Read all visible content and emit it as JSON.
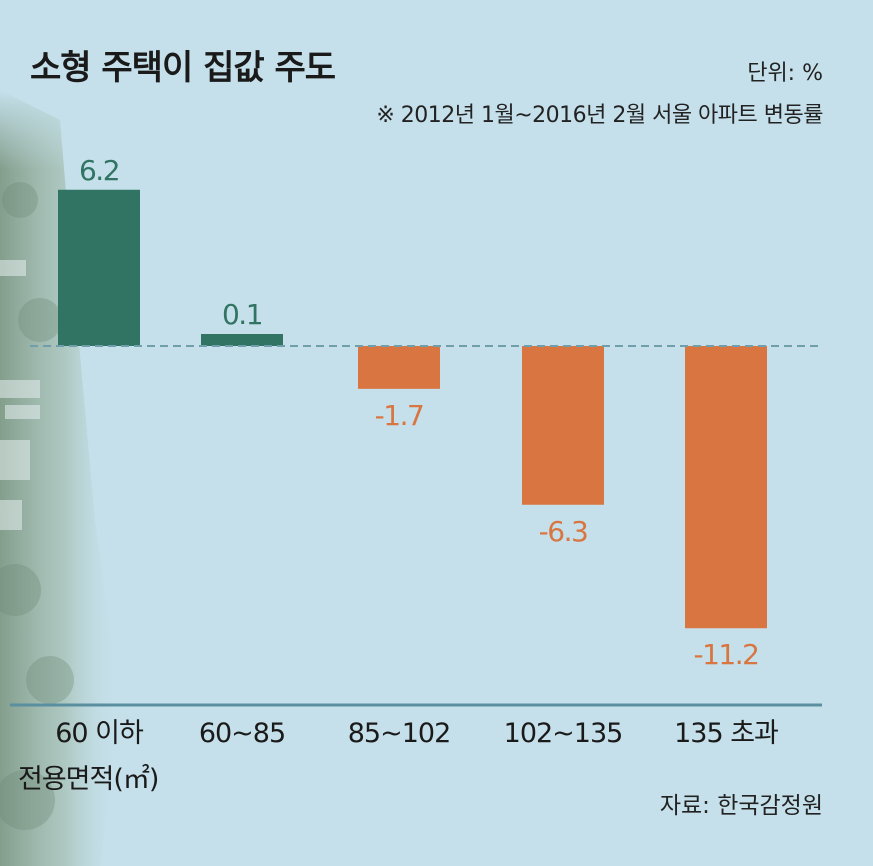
{
  "header": {
    "title": "소형 주택이 집값 주도",
    "unit": "단위: %",
    "note": "※ 2012년 1월~2016년 2월 서울 아파트 변동률"
  },
  "footer": {
    "source": "자료: 한국감정원",
    "x_axis_sublabel": "전용면적(㎡)"
  },
  "colors": {
    "positive": "#317463",
    "negative": "#d87540",
    "baseline": "#6f9fab",
    "axis": "#5a8fa0",
    "background": "#c5e0ea"
  },
  "chart_data": {
    "type": "bar",
    "title": "소형 주택이 집값 주도",
    "categories": [
      "60 이하",
      "60~85",
      "85~102",
      "102~135",
      "135 초과"
    ],
    "values": [
      6.2,
      0.1,
      -1.7,
      -6.3,
      -11.2
    ],
    "value_labels": [
      "6.2",
      "0.1",
      "-1.7",
      "-6.3",
      "-11.2"
    ],
    "xlabel": "전용면적(㎡)",
    "ylabel": "",
    "ylim": [
      -13.8,
      7.4
    ],
    "grid": false,
    "legend": "none",
    "baseline_style": "dashed"
  }
}
